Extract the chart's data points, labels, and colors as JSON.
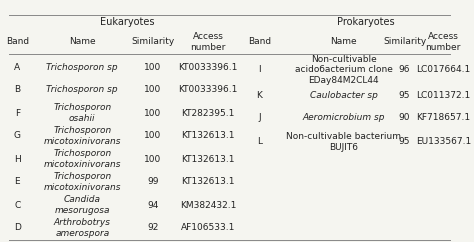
{
  "eukaryotes_header": "Eukaryotes",
  "prokaryotes_header": "Prokaryotes",
  "col_headers": [
    "Band",
    "Name",
    "Similarity",
    "Access\nnumber",
    "Band",
    "Name",
    "Similarity",
    "Access\nnumber"
  ],
  "euk_rows": [
    {
      "band": "A",
      "name": "Trichosporon sp",
      "italic": true,
      "similarity": "100",
      "access": "KT0033396.1"
    },
    {
      "band": "B",
      "name": "Trichosporon sp",
      "italic": true,
      "similarity": "100",
      "access": "KT0033396.1"
    },
    {
      "band": "F",
      "name": "Trichosporon\nosahii",
      "italic": true,
      "similarity": "100",
      "access": "KT282395.1"
    },
    {
      "band": "G",
      "name": "Trichosporon\nmicotoxinivorans",
      "italic": true,
      "similarity": "100",
      "access": "KT132613.1"
    },
    {
      "band": "H",
      "name": "Trichosporon\nmicotoxinivorans",
      "italic": true,
      "similarity": "100",
      "access": "KT132613.1"
    },
    {
      "band": "E",
      "name": "Trichosporon\nmicotoxinivorans",
      "italic": true,
      "similarity": "99",
      "access": "KT132613.1"
    },
    {
      "band": "C",
      "name": "Candida\nmesorugosa",
      "italic": true,
      "similarity": "94",
      "access": "KM382432.1"
    },
    {
      "band": "D",
      "name": "Arthrobotrys\namerospora",
      "italic": true,
      "similarity": "92",
      "access": "AF106533.1"
    }
  ],
  "prok_rows": [
    {
      "band": "I",
      "name": "Non-cultivable\nacidобacterium clone\nEDay84M2CL44",
      "italic": false,
      "similarity": "96",
      "access": "LC017664.1"
    },
    {
      "band": "K",
      "name": "Caulobacter sp",
      "italic": true,
      "similarity": "95",
      "access": "LC011372.1"
    },
    {
      "band": "J",
      "name": "Aeromicrobium sp",
      "italic": true,
      "similarity": "90",
      "access": "KF718657.1"
    },
    {
      "band": "L",
      "name": "Non-cultivable bacterium\nBUJIT6",
      "italic": false,
      "similarity": "95",
      "access": "EU133567.1"
    }
  ],
  "bg_color": "#f5f5f0",
  "text_color": "#222222",
  "line_color": "#888888"
}
